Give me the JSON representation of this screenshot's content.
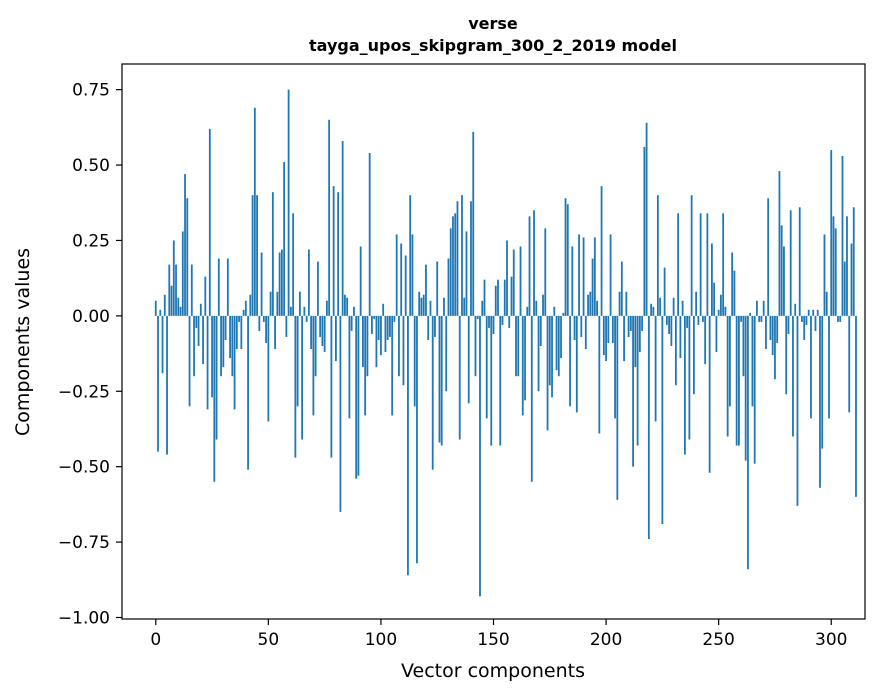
{
  "chart_data": {
    "type": "bar",
    "title": "verse",
    "subtitle": "tayga_upos_skipgram_300_2_2019 model",
    "xlabel": "Vector components",
    "ylabel": "Components values",
    "xlim": [
      -15.0,
      315.0
    ],
    "ylim": [
      -1.005,
      0.835
    ],
    "xticks": [
      0,
      50,
      100,
      150,
      200,
      250,
      300
    ],
    "xtick_labels": [
      "0",
      "50",
      "100",
      "150",
      "200",
      "250",
      "300"
    ],
    "yticks": [
      -1.0,
      -0.75,
      -0.5,
      -0.25,
      0.0,
      0.25,
      0.5,
      0.75
    ],
    "ytick_labels": [
      "−1.00",
      "−0.75",
      "−0.50",
      "−0.25",
      "0.00",
      "0.25",
      "0.50",
      "0.75"
    ],
    "grid": false,
    "bar_color": "#1f77b4",
    "values": [
      0.05,
      -0.45,
      0.02,
      -0.19,
      0.07,
      -0.46,
      0.17,
      0.1,
      0.25,
      0.17,
      0.06,
      0.03,
      0.28,
      0.47,
      0.39,
      -0.3,
      0.17,
      -0.2,
      -0.04,
      -0.1,
      0.04,
      -0.16,
      0.13,
      -0.31,
      0.62,
      -0.27,
      -0.55,
      -0.41,
      0.19,
      -0.2,
      -0.17,
      -0.08,
      0.19,
      -0.14,
      -0.2,
      -0.31,
      -0.11,
      -0.02,
      -0.11,
      0.02,
      0.05,
      -0.51,
      0.07,
      0.4,
      0.69,
      0.4,
      -0.05,
      0.21,
      -0.02,
      -0.09,
      -0.35,
      0.08,
      0.41,
      -0.11,
      0.08,
      0.21,
      0.22,
      0.51,
      -0.07,
      0.75,
      0.03,
      0.34,
      -0.47,
      -0.3,
      0.08,
      -0.41,
      0.03,
      -0.02,
      0.22,
      -0.11,
      -0.33,
      -0.2,
      0.18,
      -0.07,
      -0.1,
      -0.12,
      0.05,
      0.65,
      -0.47,
      0.43,
      -0.15,
      0.41,
      -0.65,
      0.58,
      0.07,
      0.06,
      -0.34,
      -0.05,
      0.03,
      -0.54,
      -0.53,
      0.23,
      -0.17,
      -0.33,
      -0.2,
      0.54,
      -0.06,
      -0.01,
      -0.17,
      -0.08,
      -0.13,
      0.04,
      -0.12,
      -0.08,
      -0.07,
      -0.33,
      -0.02,
      0.27,
      -0.2,
      0.24,
      -0.23,
      0.2,
      -0.86,
      0.4,
      0.27,
      -0.3,
      -0.82,
      0.08,
      0.06,
      0.07,
      0.17,
      -0.08,
      0.05,
      -0.51,
      -0.07,
      0.18,
      -0.42,
      -0.43,
      0.06,
      -0.25,
      0.19,
      0.29,
      0.33,
      0.34,
      0.38,
      -0.41,
      0.4,
      0.06,
      0.28,
      -0.29,
      0.38,
      0.61,
      -0.2,
      -0.01,
      -0.93,
      0.05,
      0.12,
      -0.34,
      -0.04,
      -0.43,
      -0.06,
      0.1,
      0.12,
      -0.43,
      -0.03,
      0.12,
      0.25,
      -0.04,
      0.13,
      0.22,
      -0.2,
      -0.2,
      0.23,
      -0.33,
      -0.28,
      0.03,
      0.33,
      -0.55,
      0.35,
      0.05,
      -0.25,
      -0.1,
      0.07,
      0.29,
      -0.38,
      -0.23,
      -0.27,
      0.03,
      -0.18,
      -0.2,
      -0.14,
      0.01,
      0.39,
      0.37,
      -0.3,
      0.23,
      -0.08,
      -0.32,
      0.27,
      -0.07,
      0.26,
      -0.11,
      0.07,
      0.08,
      0.19,
      0.26,
      0.05,
      -0.39,
      0.43,
      -0.13,
      -0.15,
      -0.09,
      0.27,
      -0.09,
      -0.34,
      -0.61,
      0.08,
      0.18,
      -0.15,
      0.08,
      -0.07,
      -0.05,
      -0.5,
      -0.17,
      -0.43,
      -0.12,
      -0.05,
      0.56,
      0.64,
      -0.74,
      0.04,
      0.03,
      -0.35,
      0.4,
      0.06,
      -0.69,
      0.16,
      -0.03,
      -0.06,
      -0.1,
      0.06,
      -0.23,
      0.34,
      -0.14,
      0.05,
      -0.46,
      -0.04,
      -0.41,
      0.4,
      -0.26,
      0.08,
      -0.03,
      0.34,
      -0.02,
      -0.16,
      0.34,
      -0.52,
      0.24,
      0.11,
      -0.12,
      0.02,
      0.07,
      0.34,
      0.03,
      -0.4,
      -0.3,
      0.21,
      0.15,
      -0.43,
      -0.43,
      -0.02,
      -0.2,
      -0.48,
      -0.84,
      0.01,
      -0.3,
      -0.49,
      0.05,
      -0.02,
      -0.02,
      0.05,
      -0.11,
      0.39,
      -0.08,
      -0.13,
      -0.21,
      -0.09,
      0.48,
      0.3,
      0.23,
      -0.26,
      -0.06,
      0.35,
      -0.4,
      0.04,
      -0.63,
      0.36,
      -0.02,
      -0.08,
      -0.03,
      0.02,
      -0.34,
      0.02,
      -0.05,
      0.02,
      -0.57,
      -0.44,
      0.27,
      0.08,
      -0.34,
      0.55,
      0.33,
      0.29,
      -0.02,
      -0.02,
      0.53,
      0.18,
      0.33,
      -0.32,
      0.24,
      0.36,
      -0.6
    ]
  }
}
